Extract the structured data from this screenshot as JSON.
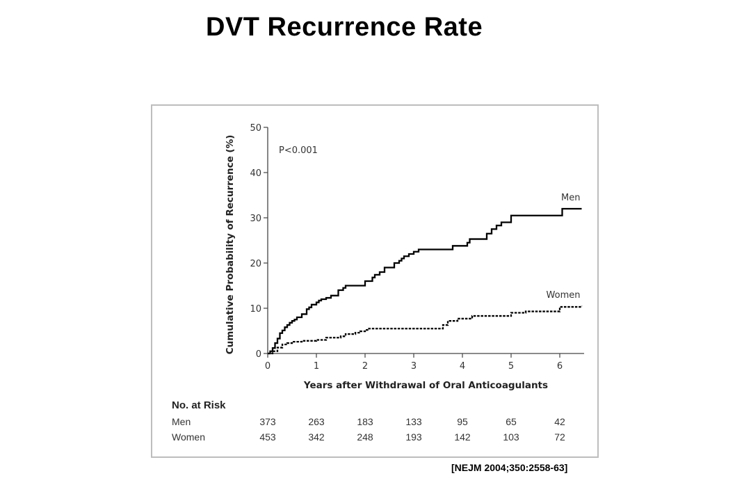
{
  "slide": {
    "title": "DVT Recurrence Rate",
    "citation": "[NEJM 2004;350:2558-63]"
  },
  "chart_data": {
    "type": "line",
    "title": "",
    "xlabel": "Years after Withdrawal of Oral Anticoagulants",
    "ylabel": "Cumulative Probability of Recurrence (%)",
    "xlim": [
      0,
      6.5
    ],
    "ylim": [
      0,
      50
    ],
    "xticks": [
      0,
      1,
      2,
      3,
      4,
      5,
      6
    ],
    "yticks": [
      0,
      10,
      20,
      30,
      40,
      50
    ],
    "annotation": "P<0.001",
    "grid": false,
    "series": [
      {
        "name": "Men",
        "style": "solid",
        "color": "#000000",
        "x": [
          0,
          0.05,
          0.1,
          0.15,
          0.2,
          0.25,
          0.3,
          0.35,
          0.4,
          0.45,
          0.5,
          0.55,
          0.6,
          0.7,
          0.8,
          0.85,
          0.9,
          1.0,
          1.05,
          1.1,
          1.2,
          1.3,
          1.45,
          1.55,
          1.6,
          1.7,
          2.0,
          2.15,
          2.2,
          2.3,
          2.4,
          2.6,
          2.7,
          2.75,
          2.8,
          2.9,
          3.0,
          3.1,
          3.25,
          3.75,
          3.8,
          4.1,
          4.15,
          4.5,
          4.6,
          4.7,
          4.8,
          5.0,
          6.05,
          6.45
        ],
        "values": [
          0,
          0.5,
          1.2,
          2.3,
          3.3,
          4.5,
          5.1,
          5.8,
          6.3,
          6.8,
          7.2,
          7.5,
          8.0,
          8.7,
          9.8,
          10.2,
          10.8,
          11.3,
          11.7,
          12.0,
          12.3,
          12.8,
          14.0,
          14.5,
          15.0,
          15.0,
          16.0,
          16.8,
          17.4,
          18.0,
          19.0,
          20.0,
          20.5,
          21.0,
          21.5,
          22.0,
          22.5,
          23.0,
          23.0,
          23.0,
          23.8,
          24.5,
          25.3,
          26.5,
          27.5,
          28.3,
          29.0,
          30.5,
          32.0,
          32.0
        ]
      },
      {
        "name": "Women",
        "style": "dashed",
        "color": "#000000",
        "x": [
          0,
          0.1,
          0.2,
          0.3,
          0.4,
          0.5,
          0.7,
          1.0,
          1.2,
          1.5,
          1.6,
          1.8,
          1.9,
          2.0,
          2.05,
          3.5,
          3.6,
          3.7,
          3.9,
          4.2,
          5.0,
          5.3,
          6.0,
          6.45
        ],
        "values": [
          0,
          0.5,
          1.3,
          2.0,
          2.3,
          2.6,
          2.8,
          3.0,
          3.5,
          3.8,
          4.3,
          4.6,
          4.9,
          5.2,
          5.5,
          5.5,
          6.3,
          7.2,
          7.7,
          8.3,
          9.0,
          9.3,
          10.3,
          10.5
        ]
      }
    ],
    "risk_table": {
      "title": "No. at Risk",
      "rows": [
        {
          "label": "Men",
          "values": [
            "373",
            "263",
            "183",
            "133",
            "95",
            "65",
            "42"
          ]
        },
        {
          "label": "Women",
          "values": [
            "453",
            "342",
            "248",
            "193",
            "142",
            "103",
            "72"
          ]
        }
      ]
    }
  }
}
